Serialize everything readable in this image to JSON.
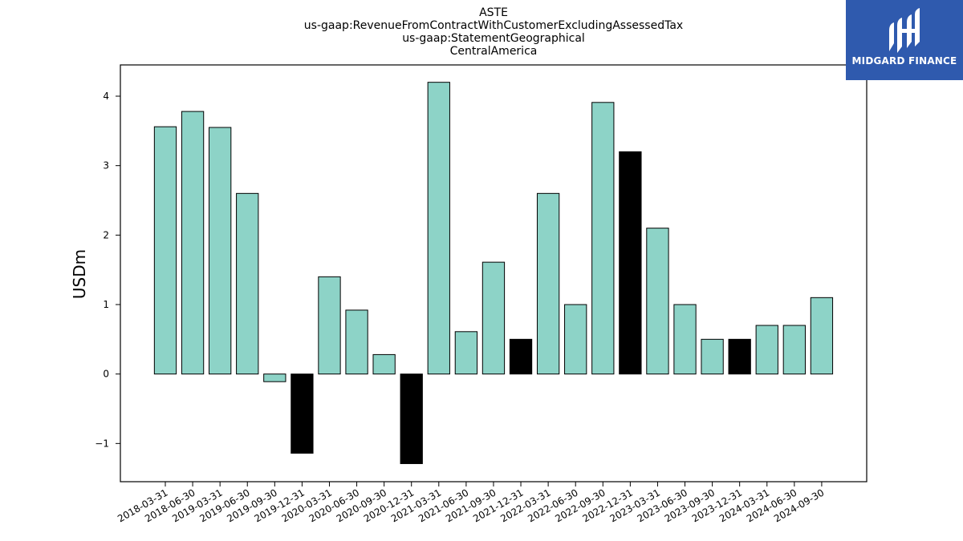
{
  "title_lines": [
    "ASTE",
    "us-gaap:RevenueFromContractWithCustomerExcludingAssessedTax",
    "us-gaap:StatementGeographical",
    "CentralAmerica"
  ],
  "logo": {
    "text": "MIDGARD FINANCE",
    "icon": "midgard-logo-icon",
    "background": "#2f5aae"
  },
  "chart_data": {
    "type": "bar",
    "title": "ASTE\nus-gaap:RevenueFromContractWithCustomerExcludingAssessedTax\nus-gaap:StatementGeographical\nCentralAmerica",
    "xlabel": "",
    "ylabel": "USDm",
    "ylim": [
      -1.55,
      4.45
    ],
    "yticks": [
      -1,
      0,
      1,
      2,
      3,
      4
    ],
    "ytick_labels": [
      "−1",
      "0",
      "1",
      "2",
      "3",
      "4"
    ],
    "grid": false,
    "categories": [
      "2018-03-31",
      "2018-06-30",
      "2019-03-31",
      "2019-06-30",
      "2019-09-30",
      "2019-12-31",
      "2020-03-31",
      "2020-06-30",
      "2020-09-30",
      "2020-12-31",
      "2021-03-31",
      "2021-06-30",
      "2021-09-30",
      "2021-12-31",
      "2022-03-31",
      "2022-06-30",
      "2022-09-30",
      "2022-12-31",
      "2023-03-31",
      "2023-06-30",
      "2023-09-30",
      "2023-12-31",
      "2024-03-31",
      "2024-06-30",
      "2024-09-30"
    ],
    "values": [
      3.56,
      3.78,
      3.55,
      2.6,
      -0.11,
      -1.14,
      1.4,
      0.92,
      0.28,
      -1.29,
      4.2,
      0.61,
      1.61,
      0.5,
      2.6,
      1.0,
      3.91,
      3.2,
      2.1,
      1.0,
      0.5,
      0.5,
      0.7,
      0.7,
      1.1
    ],
    "bar_colors": [
      "#8dd3c7",
      "#8dd3c7",
      "#8dd3c7",
      "#8dd3c7",
      "#8dd3c7",
      "#000000",
      "#8dd3c7",
      "#8dd3c7",
      "#8dd3c7",
      "#000000",
      "#8dd3c7",
      "#8dd3c7",
      "#8dd3c7",
      "#000000",
      "#8dd3c7",
      "#8dd3c7",
      "#8dd3c7",
      "#000000",
      "#8dd3c7",
      "#8dd3c7",
      "#8dd3c7",
      "#000000",
      "#8dd3c7",
      "#8dd3c7",
      "#8dd3c7"
    ]
  }
}
